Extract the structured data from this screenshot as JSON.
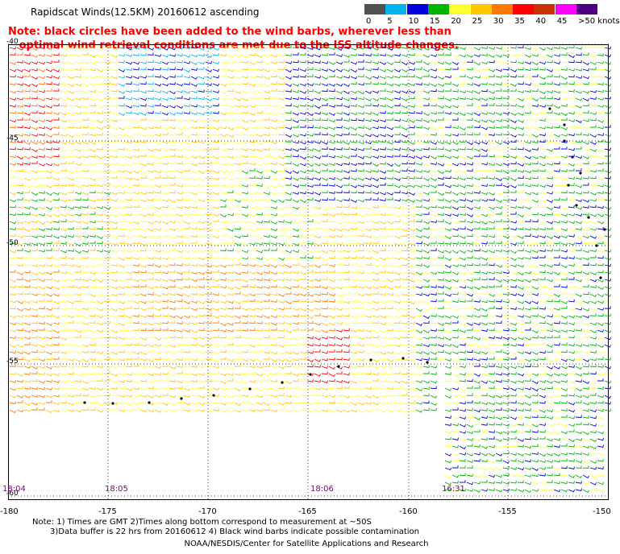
{
  "title": "Rapidscat Winds(12.5KM) 20160612 ascending",
  "note": {
    "line1": "Note: black circles have been added to the wind barbs, wherever less than",
    "line2": "optimal wind retrieval conditions are met due to the ISS altitude changes."
  },
  "legend": {
    "labels": [
      "0",
      "5",
      "10",
      "15",
      "20",
      "25",
      "30",
      "35",
      "40",
      "45",
      ">50 knots"
    ],
    "colors": [
      "#505050",
      "#00b4f0",
      "#0000dc",
      "#00b400",
      "#ffff32",
      "#ffc800",
      "#ff7800",
      "#ff0000",
      "#c83200",
      "#ff00ff",
      "#4b0082"
    ]
  },
  "map": {
    "y_labels": [
      "-40",
      "-45",
      "-50",
      "-55",
      "-60"
    ],
    "x_labels": [
      "-180",
      "-175",
      "-170",
      "-165",
      "-160",
      "-155",
      "-150"
    ],
    "times": [
      "18:04",
      "18:05",
      "18:06",
      "16:31"
    ]
  },
  "footnote": {
    "line1": "Note: 1) Times are GMT 2)Times along bottom correspond to measurement at ~50S",
    "line2": "3)Data buffer is 22 hrs from 20160612 4) Black wind barbs indicate possible contamination"
  },
  "credit": "NOAA/NESDIS/Center for Satellite Applications and Research"
}
